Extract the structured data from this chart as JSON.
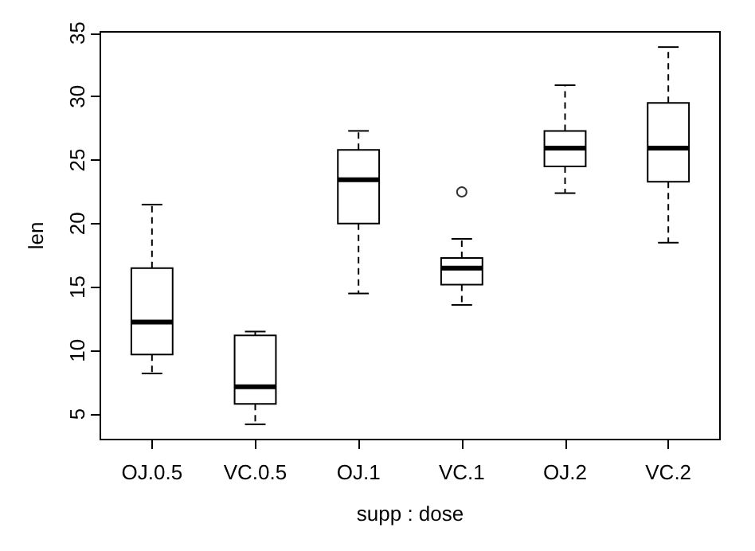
{
  "chart_data": {
    "type": "box",
    "xlabel": "supp : dose",
    "ylabel": "len",
    "categories": [
      "OJ.0.5",
      "VC.0.5",
      "OJ.1",
      "VC.1",
      "OJ.2",
      "VC.2"
    ],
    "boxes": [
      {
        "low": 8.2,
        "q1": 9.7,
        "median": 12.25,
        "q3": 16.5,
        "high": 21.5
      },
      {
        "low": 4.2,
        "q1": 5.8,
        "median": 7.15,
        "q3": 11.2,
        "high": 11.5
      },
      {
        "low": 14.5,
        "q1": 20,
        "median": 23.45,
        "q3": 25.8,
        "high": 27.3
      },
      {
        "low": 13.6,
        "q1": 15.2,
        "median": 16.5,
        "q3": 17.3,
        "high": 18.8,
        "outliers": [
          22.5
        ]
      },
      {
        "low": 22.4,
        "q1": 24.5,
        "median": 25.95,
        "q3": 27.3,
        "high": 30.9
      },
      {
        "low": 18.5,
        "q1": 23.3,
        "median": 25.95,
        "q3": 29.5,
        "high": 33.9
      }
    ],
    "color": "#000000",
    "ylim": [
      3.0,
      35.1
    ],
    "yticks": [
      5,
      10,
      15,
      20,
      25,
      30,
      35
    ],
    "grid": false
  }
}
